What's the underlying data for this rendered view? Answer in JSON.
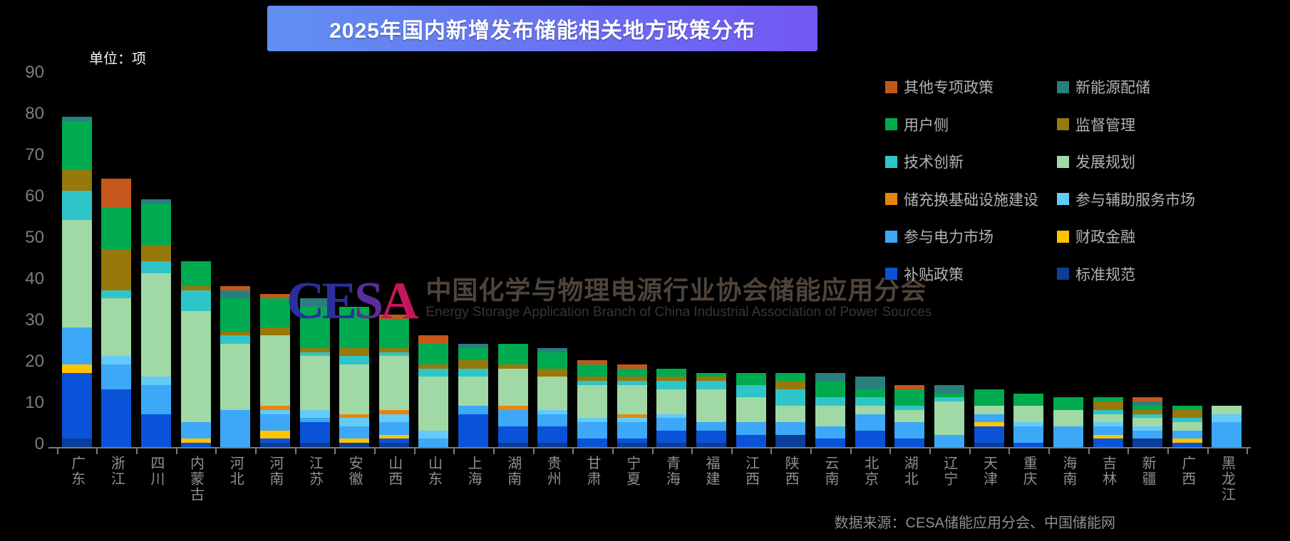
{
  "title": "2025年国内新增发布储能相关地方政策分布",
  "unit_label": "单位：项",
  "source": "数据来源：CESA储能应用分会、中国储能网",
  "watermark": {
    "logo": "CESA",
    "cn": "中国化学与物理电源行业协会储能应用分会",
    "en": "Energy Storage Application Branch of China Industrial Association of Power Sources"
  },
  "colors": {
    "background": "#000000",
    "banner_from": "#6090F0",
    "banner_to": "#7258F2",
    "axis": "#7a7a7a",
    "y_label": "#7d7d7d",
    "x_label": "#8f8f8f",
    "legend_text": "#b3b3b3",
    "source_text": "#8f8f8f",
    "logo_blue": "#2B2F9E",
    "logo_red": "#C2185B"
  },
  "legend": {
    "left": [
      {
        "label": "其他专项政策",
        "color": "#C5571C"
      },
      {
        "label": "用户侧",
        "color": "#00AB50"
      },
      {
        "label": "技术创新",
        "color": "#2EC5C8"
      },
      {
        "label": "储充换基础设施建设",
        "color": "#E8860C"
      },
      {
        "label": "参与电力市场",
        "color": "#3DA8F8"
      },
      {
        "label": "补贴政策",
        "color": "#0A52D8"
      }
    ],
    "right": [
      {
        "label": "新能源配储",
        "color": "#297F7E"
      },
      {
        "label": "监督管理",
        "color": "#97780A"
      },
      {
        "label": "发展规划",
        "color": "#A0D9A5"
      },
      {
        "label": "参与辅助服务市场",
        "color": "#64CBF8"
      },
      {
        "label": "财政金融",
        "color": "#FFC400"
      },
      {
        "label": "标准规范",
        "color": "#0B3D9B"
      }
    ]
  },
  "chart_data": {
    "type": "bar",
    "stacked": true,
    "title": "2025年国内新增发布储能相关地方政策分布",
    "unit": "项",
    "ylim": [
      0,
      90
    ],
    "y_ticks": [
      0,
      10,
      20,
      30,
      40,
      50,
      60,
      70,
      80,
      90
    ],
    "grid": false,
    "legend_position": "top-right",
    "categories": [
      "广东",
      "浙江",
      "四川",
      "内蒙古",
      "河北",
      "河南",
      "江苏",
      "安徽",
      "山西",
      "山东",
      "上海",
      "湖南",
      "贵州",
      "甘肃",
      "宁夏",
      "青海",
      "福建",
      "江西",
      "陕西",
      "云南",
      "北京",
      "湖北",
      "辽宁",
      "天津",
      "重庆",
      "海南",
      "吉林",
      "新疆",
      "广西",
      "黑龙江"
    ],
    "totals": [
      80,
      65,
      60,
      45,
      39,
      37,
      36,
      34,
      32,
      27,
      25,
      25,
      24,
      21,
      20,
      19,
      18,
      18,
      18,
      18,
      17,
      15,
      15,
      14,
      13,
      12,
      12,
      12,
      10,
      10
    ],
    "stack_order_note": "series listed bottom-to-top of each stacked bar",
    "series": [
      {
        "name": "标准规范",
        "color": "#0B3D9B",
        "values": [
          2,
          0,
          0,
          0,
          0,
          1,
          1,
          1,
          1,
          0,
          0,
          1,
          1,
          0,
          1,
          1,
          1,
          0,
          3,
          0,
          0,
          0,
          0,
          1,
          0,
          0,
          0,
          2,
          0,
          0
        ]
      },
      {
        "name": "补贴政策",
        "color": "#0A52D8",
        "values": [
          16,
          14,
          8,
          1,
          0,
          1,
          5,
          0,
          1,
          0,
          8,
          4,
          4,
          2,
          1,
          3,
          3,
          3,
          0,
          2,
          4,
          2,
          0,
          4,
          1,
          0,
          2,
          0,
          1,
          0
        ]
      },
      {
        "name": "财政金融",
        "color": "#FFC400",
        "values": [
          2,
          0,
          0,
          1,
          0,
          2,
          0,
          1,
          1,
          0,
          0,
          0,
          0,
          0,
          0,
          0,
          0,
          0,
          0,
          0,
          0,
          0,
          0,
          1,
          0,
          0,
          1,
          0,
          1,
          0
        ]
      },
      {
        "name": "参与电力市场",
        "color": "#3DA8F8",
        "values": [
          9,
          6,
          7,
          4,
          9,
          4,
          1,
          3,
          3,
          2,
          2,
          4,
          3,
          4,
          4,
          3,
          2,
          3,
          3,
          3,
          4,
          4,
          3,
          2,
          4,
          5,
          2,
          2,
          2,
          6
        ]
      },
      {
        "name": "参与辅助服务市场",
        "color": "#64CBF8",
        "values": [
          0,
          2,
          2,
          0,
          0,
          1,
          2,
          2,
          2,
          2,
          0,
          0,
          1,
          1,
          1,
          1,
          0,
          0,
          0,
          0,
          0,
          0,
          0,
          0,
          1,
          0,
          1,
          1,
          0,
          2
        ]
      },
      {
        "name": "储充换基础设施建设",
        "color": "#E8860C",
        "values": [
          0,
          0,
          0,
          0,
          0,
          1,
          0,
          1,
          1,
          0,
          0,
          1,
          0,
          0,
          1,
          0,
          0,
          0,
          0,
          0,
          0,
          0,
          0,
          0,
          0,
          0,
          0,
          0,
          0,
          0
        ]
      },
      {
        "name": "发展规划",
        "color": "#A0D9A5",
        "values": [
          26,
          14,
          25,
          27,
          16,
          17,
          13,
          12,
          13,
          13,
          7,
          9,
          8,
          8,
          7,
          6,
          8,
          6,
          4,
          5,
          2,
          3,
          8,
          2,
          4,
          4,
          2,
          2,
          2,
          2
        ]
      },
      {
        "name": "技术创新",
        "color": "#2EC5C8",
        "values": [
          7,
          2,
          3,
          5,
          2,
          0,
          1,
          2,
          1,
          2,
          2,
          0,
          0,
          1,
          1,
          2,
          2,
          3,
          4,
          2,
          2,
          1,
          1,
          0,
          0,
          0,
          1,
          1,
          1,
          0
        ]
      },
      {
        "name": "监督管理",
        "color": "#97780A",
        "values": [
          5,
          10,
          4,
          1,
          1,
          2,
          1,
          2,
          1,
          1,
          2,
          1,
          2,
          1,
          1,
          1,
          1,
          0,
          2,
          0,
          0,
          0,
          0,
          0,
          0,
          0,
          2,
          1,
          2,
          0
        ]
      },
      {
        "name": "用户侧",
        "color": "#00AB50",
        "values": [
          12,
          10,
          10,
          6,
          8,
          7,
          10,
          10,
          7,
          5,
          3,
          5,
          4,
          3,
          2,
          2,
          1,
          3,
          2,
          4,
          2,
          4,
          1,
          4,
          3,
          3,
          1,
          1,
          1,
          0
        ]
      },
      {
        "name": "新能源配储",
        "color": "#297F7E",
        "values": [
          1,
          0,
          1,
          0,
          2,
          0,
          2,
          0,
          0,
          0,
          1,
          0,
          1,
          0,
          0,
          0,
          0,
          0,
          0,
          2,
          3,
          0,
          2,
          0,
          0,
          0,
          0,
          1,
          0,
          0
        ]
      },
      {
        "name": "其他专项政策",
        "color": "#C5571C",
        "values": [
          0,
          7,
          0,
          0,
          1,
          1,
          0,
          0,
          1,
          2,
          0,
          0,
          0,
          1,
          1,
          0,
          0,
          0,
          0,
          0,
          0,
          1,
          0,
          0,
          0,
          0,
          0,
          1,
          0,
          0
        ]
      }
    ]
  }
}
